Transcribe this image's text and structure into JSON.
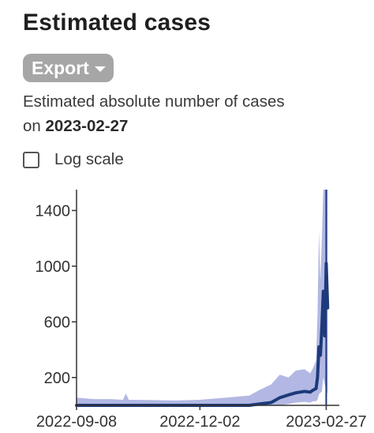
{
  "header": {
    "title": "Estimated cases"
  },
  "export": {
    "label": "Export"
  },
  "description": {
    "prefix": "Estimated absolute number of cases",
    "on": "on",
    "date": "2023-02-27"
  },
  "log_scale": {
    "label": "Log scale",
    "checked": false
  },
  "chart_data": {
    "type": "line",
    "title": "",
    "xlabel": "",
    "ylabel": "",
    "x_ticks": [
      "2022-09-08",
      "2022-12-02",
      "2023-02-27"
    ],
    "y_ticks": [
      200,
      600,
      1000,
      1400
    ],
    "ylim": [
      0,
      1550
    ],
    "xlim": [
      "2022-09-08",
      "2023-03-08"
    ],
    "grid": false,
    "series": [
      {
        "color": "#1d3a7a",
        "band_color": "#b2b8e3",
        "points": [
          {
            "x": "2022-09-08",
            "y": 0,
            "low": 0,
            "high": 55
          },
          {
            "x": "2022-09-20",
            "y": 0,
            "low": 0,
            "high": 45
          },
          {
            "x": "2022-10-02",
            "y": 0,
            "low": 0,
            "high": 45
          },
          {
            "x": "2022-10-10",
            "y": 0,
            "low": 0,
            "high": 40
          },
          {
            "x": "2022-10-12",
            "y": 0,
            "low": 0,
            "high": 85
          },
          {
            "x": "2022-10-14",
            "y": 0,
            "low": 0,
            "high": 40
          },
          {
            "x": "2022-10-28",
            "y": 0,
            "low": 0,
            "high": 38
          },
          {
            "x": "2022-11-15",
            "y": 0,
            "low": 0,
            "high": 35
          },
          {
            "x": "2022-12-02",
            "y": 0,
            "low": 0,
            "high": 40
          },
          {
            "x": "2022-12-20",
            "y": 0,
            "low": 0,
            "high": 55
          },
          {
            "x": "2023-01-05",
            "y": 0,
            "low": 0,
            "high": 70
          },
          {
            "x": "2023-01-12",
            "y": 10,
            "low": 0,
            "high": 110
          },
          {
            "x": "2023-01-20",
            "y": 20,
            "low": 0,
            "high": 150
          },
          {
            "x": "2023-01-26",
            "y": 55,
            "low": 0,
            "high": 220
          },
          {
            "x": "2023-02-01",
            "y": 75,
            "low": 10,
            "high": 200
          },
          {
            "x": "2023-02-06",
            "y": 90,
            "low": 20,
            "high": 250
          },
          {
            "x": "2023-02-12",
            "y": 100,
            "low": 25,
            "high": 260
          },
          {
            "x": "2023-02-16",
            "y": 95,
            "low": 20,
            "high": 230
          },
          {
            "x": "2023-02-18",
            "y": 110,
            "low": 30,
            "high": 270
          },
          {
            "x": "2023-02-20",
            "y": 120,
            "low": 30,
            "high": 320
          },
          {
            "x": "2023-02-21",
            "y": 200,
            "low": 40,
            "high": 650
          },
          {
            "x": "2023-02-22",
            "y": 420,
            "low": 80,
            "high": 1250
          },
          {
            "x": "2023-02-23",
            "y": 360,
            "low": 90,
            "high": 900
          },
          {
            "x": "2023-02-24",
            "y": 560,
            "low": 100,
            "high": 1200
          },
          {
            "x": "2023-02-25",
            "y": 820,
            "low": 200,
            "high": 1550
          },
          {
            "x": "2023-02-26",
            "y": 500,
            "low": 150,
            "high": 1550
          },
          {
            "x": "2023-02-27",
            "y": 1020,
            "low": 120,
            "high": 1550
          },
          {
            "x": "2023-02-28",
            "y": 700,
            "low": 80,
            "high": 1550
          }
        ]
      }
    ],
    "marker_date": "2023-02-27"
  }
}
